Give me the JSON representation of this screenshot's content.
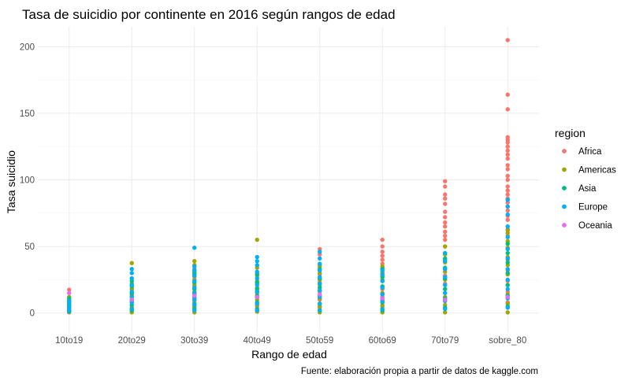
{
  "chart_data": {
    "type": "scatter",
    "title": "Tasa de suicidio por continente en 2016 según rangos de edad",
    "xlabel": "Rango de edad",
    "ylabel": "Tasa suicidio",
    "caption": "Fuente: elaboración propia a partir de datos de kaggle.com",
    "categories": [
      "10to19",
      "20to29",
      "30to39",
      "40to49",
      "50to59",
      "60to69",
      "70to79",
      "sobre_80"
    ],
    "ylim": [
      -15,
      215
    ],
    "yticks": [
      0,
      50,
      100,
      150,
      200
    ],
    "grid": true,
    "legend": {
      "title": "region",
      "placement": "right"
    },
    "series": [
      {
        "name": "Africa",
        "color": "#F8766D",
        "points": [
          [
            "10to19",
            0.5
          ],
          [
            "10to19",
            2
          ],
          [
            "10to19",
            3
          ],
          [
            "10to19",
            17.5
          ],
          [
            "20to29",
            3
          ],
          [
            "20to29",
            8
          ],
          [
            "20to29",
            13
          ],
          [
            "20to29",
            18
          ],
          [
            "30to39",
            4
          ],
          [
            "30to39",
            9
          ],
          [
            "30to39",
            14
          ],
          [
            "30to39",
            20
          ],
          [
            "30to39",
            27
          ],
          [
            "30to39",
            33
          ],
          [
            "40to49",
            5
          ],
          [
            "40to49",
            12
          ],
          [
            "40to49",
            17
          ],
          [
            "40to49",
            22
          ],
          [
            "40to49",
            30
          ],
          [
            "50to59",
            4
          ],
          [
            "50to59",
            10
          ],
          [
            "50to59",
            17
          ],
          [
            "50to59",
            23
          ],
          [
            "50to59",
            29
          ],
          [
            "50to59",
            36
          ],
          [
            "50to59",
            44
          ],
          [
            "50to59",
            48
          ],
          [
            "60to69",
            6
          ],
          [
            "60to69",
            12
          ],
          [
            "60to69",
            18
          ],
          [
            "60to69",
            24
          ],
          [
            "60to69",
            28
          ],
          [
            "60to69",
            31
          ],
          [
            "60to69",
            34
          ],
          [
            "60to69",
            37
          ],
          [
            "60to69",
            40
          ],
          [
            "60to69",
            43
          ],
          [
            "60to69",
            46
          ],
          [
            "60to69",
            50
          ],
          [
            "60to69",
            55
          ],
          [
            "70to79",
            10
          ],
          [
            "70to79",
            15
          ],
          [
            "70to79",
            22
          ],
          [
            "70to79",
            28
          ],
          [
            "70to79",
            33
          ],
          [
            "70to79",
            40
          ],
          [
            "70to79",
            45
          ],
          [
            "70to79",
            50
          ],
          [
            "70to79",
            55
          ],
          [
            "70to79",
            58
          ],
          [
            "70to79",
            61
          ],
          [
            "70to79",
            65
          ],
          [
            "70to79",
            68
          ],
          [
            "70to79",
            72
          ],
          [
            "70to79",
            76
          ],
          [
            "70to79",
            82
          ],
          [
            "70to79",
            86
          ],
          [
            "70to79",
            89
          ],
          [
            "70to79",
            95
          ],
          [
            "70to79",
            99
          ],
          [
            "sobre_80",
            8
          ],
          [
            "sobre_80",
            16
          ],
          [
            "sobre_80",
            24
          ],
          [
            "sobre_80",
            32
          ],
          [
            "sobre_80",
            40
          ],
          [
            "sobre_80",
            52
          ],
          [
            "sobre_80",
            58
          ],
          [
            "sobre_80",
            63
          ],
          [
            "sobre_80",
            70
          ],
          [
            "sobre_80",
            73
          ],
          [
            "sobre_80",
            77
          ],
          [
            "sobre_80",
            80
          ],
          [
            "sobre_80",
            83
          ],
          [
            "sobre_80",
            86
          ],
          [
            "sobre_80",
            89
          ],
          [
            "sobre_80",
            92
          ],
          [
            "sobre_80",
            95
          ],
          [
            "sobre_80",
            100
          ],
          [
            "sobre_80",
            103
          ],
          [
            "sobre_80",
            108
          ],
          [
            "sobre_80",
            111
          ],
          [
            "sobre_80",
            116
          ],
          [
            "sobre_80",
            119
          ],
          [
            "sobre_80",
            122
          ],
          [
            "sobre_80",
            125
          ],
          [
            "sobre_80",
            128
          ],
          [
            "sobre_80",
            130
          ],
          [
            "sobre_80",
            132
          ],
          [
            "sobre_80",
            153
          ],
          [
            "sobre_80",
            164
          ],
          [
            "sobre_80",
            205
          ]
        ]
      },
      {
        "name": "Americas",
        "color": "#A3A500",
        "points": [
          [
            "10to19",
            1
          ],
          [
            "10to19",
            4
          ],
          [
            "10to19",
            6
          ],
          [
            "10to19",
            8
          ],
          [
            "10to19",
            10
          ],
          [
            "10to19",
            12
          ],
          [
            "20to29",
            0.5
          ],
          [
            "20to29",
            4
          ],
          [
            "20to29",
            9
          ],
          [
            "20to29",
            14
          ],
          [
            "20to29",
            18
          ],
          [
            "20to29",
            22
          ],
          [
            "20to29",
            26
          ],
          [
            "20to29",
            37.5
          ],
          [
            "30to39",
            0.5
          ],
          [
            "30to39",
            5
          ],
          [
            "30to39",
            11
          ],
          [
            "30to39",
            16
          ],
          [
            "30to39",
            21
          ],
          [
            "30to39",
            25
          ],
          [
            "30to39",
            29
          ],
          [
            "30to39",
            31
          ],
          [
            "30to39",
            36
          ],
          [
            "30to39",
            39
          ],
          [
            "40to49",
            1
          ],
          [
            "40to49",
            6
          ],
          [
            "40to49",
            10
          ],
          [
            "40to49",
            15
          ],
          [
            "40to49",
            19
          ],
          [
            "40to49",
            24
          ],
          [
            "40to49",
            28
          ],
          [
            "40to49",
            34
          ],
          [
            "40to49",
            55
          ],
          [
            "50to59",
            0.5
          ],
          [
            "50to59",
            5
          ],
          [
            "50to59",
            11
          ],
          [
            "50to59",
            16
          ],
          [
            "50to59",
            21
          ],
          [
            "50to59",
            25
          ],
          [
            "50to59",
            30
          ],
          [
            "50to59",
            35
          ],
          [
            "60to69",
            0.5
          ],
          [
            "60to69",
            5
          ],
          [
            "60to69",
            10
          ],
          [
            "60to69",
            15
          ],
          [
            "60to69",
            20
          ],
          [
            "60to69",
            25
          ],
          [
            "60to69",
            30
          ],
          [
            "60to69",
            35
          ],
          [
            "70to79",
            0.5
          ],
          [
            "70to79",
            6
          ],
          [
            "70to79",
            12
          ],
          [
            "70to79",
            18
          ],
          [
            "70to79",
            25
          ],
          [
            "70to79",
            31
          ],
          [
            "70to79",
            38
          ],
          [
            "70to79",
            44
          ],
          [
            "70to79",
            50
          ],
          [
            "sobre_80",
            0.5
          ],
          [
            "sobre_80",
            7
          ],
          [
            "sobre_80",
            14
          ],
          [
            "sobre_80",
            21
          ],
          [
            "sobre_80",
            29
          ],
          [
            "sobre_80",
            36
          ],
          [
            "sobre_80",
            42
          ],
          [
            "sobre_80",
            49
          ],
          [
            "sobre_80",
            54
          ],
          [
            "sobre_80",
            60
          ],
          [
            "sobre_80",
            62
          ]
        ]
      },
      {
        "name": "Asia",
        "color": "#00BF7D",
        "points": [
          [
            "10to19",
            1
          ],
          [
            "10to19",
            3
          ],
          [
            "10to19",
            5
          ],
          [
            "10to19",
            7
          ],
          [
            "10to19",
            9
          ],
          [
            "10to19",
            11
          ],
          [
            "20to29",
            2
          ],
          [
            "20to29",
            6
          ],
          [
            "20to29",
            10
          ],
          [
            "20to29",
            15
          ],
          [
            "20to29",
            20
          ],
          [
            "20to29",
            24
          ],
          [
            "30to39",
            3
          ],
          [
            "30to39",
            7
          ],
          [
            "30to39",
            12
          ],
          [
            "30to39",
            18
          ],
          [
            "30to39",
            23
          ],
          [
            "30to39",
            30
          ],
          [
            "40to49",
            3
          ],
          [
            "40to49",
            8
          ],
          [
            "40to49",
            13
          ],
          [
            "40to49",
            18
          ],
          [
            "40to49",
            23
          ],
          [
            "40to49",
            29
          ],
          [
            "50to59",
            2
          ],
          [
            "50to59",
            7
          ],
          [
            "50to59",
            13
          ],
          [
            "50to59",
            19
          ],
          [
            "50to59",
            26
          ],
          [
            "50to59",
            33
          ],
          [
            "60to69",
            2
          ],
          [
            "60to69",
            8
          ],
          [
            "60to69",
            14
          ],
          [
            "60to69",
            20
          ],
          [
            "60to69",
            27
          ],
          [
            "60to69",
            33
          ],
          [
            "70to79",
            4
          ],
          [
            "70to79",
            11
          ],
          [
            "70to79",
            18
          ],
          [
            "70to79",
            26
          ],
          [
            "70to79",
            34
          ],
          [
            "70to79",
            41
          ],
          [
            "sobre_80",
            5
          ],
          [
            "sobre_80",
            13
          ],
          [
            "sobre_80",
            21
          ],
          [
            "sobre_80",
            30
          ],
          [
            "sobre_80",
            38
          ],
          [
            "sobre_80",
            45
          ],
          [
            "sobre_80",
            52
          ]
        ]
      },
      {
        "name": "Europe",
        "color": "#00B0F6",
        "points": [
          [
            "10to19",
            2
          ],
          [
            "10to19",
            4
          ],
          [
            "10to19",
            6
          ],
          [
            "10to19",
            9
          ],
          [
            "20to29",
            3
          ],
          [
            "20to29",
            8
          ],
          [
            "20to29",
            12
          ],
          [
            "20to29",
            16
          ],
          [
            "20to29",
            21
          ],
          [
            "20to29",
            26
          ],
          [
            "20to29",
            30
          ],
          [
            "20to29",
            33
          ],
          [
            "30to39",
            2
          ],
          [
            "30to39",
            6
          ],
          [
            "30to39",
            10
          ],
          [
            "30to39",
            15
          ],
          [
            "30to39",
            19
          ],
          [
            "30to39",
            24
          ],
          [
            "30to39",
            28
          ],
          [
            "30to39",
            32
          ],
          [
            "30to39",
            35
          ],
          [
            "30to39",
            49
          ],
          [
            "40to49",
            2
          ],
          [
            "40to49",
            7
          ],
          [
            "40to49",
            12
          ],
          [
            "40to49",
            16
          ],
          [
            "40to49",
            21
          ],
          [
            "40to49",
            26
          ],
          [
            "40to49",
            31
          ],
          [
            "40to49",
            36
          ],
          [
            "40to49",
            39
          ],
          [
            "40to49",
            42
          ],
          [
            "50to59",
            2
          ],
          [
            "50to59",
            7
          ],
          [
            "50to59",
            12
          ],
          [
            "50to59",
            17
          ],
          [
            "50to59",
            22
          ],
          [
            "50to59",
            27
          ],
          [
            "50to59",
            32
          ],
          [
            "50to59",
            37
          ],
          [
            "50to59",
            41
          ],
          [
            "50to59",
            46
          ],
          [
            "60to69",
            3
          ],
          [
            "60to69",
            9
          ],
          [
            "60to69",
            14
          ],
          [
            "60to69",
            19
          ],
          [
            "60to69",
            24
          ],
          [
            "60to69",
            29
          ],
          [
            "60to69",
            32
          ],
          [
            "70to79",
            3
          ],
          [
            "70to79",
            9
          ],
          [
            "70to79",
            15
          ],
          [
            "70to79",
            21
          ],
          [
            "70to79",
            27
          ],
          [
            "70to79",
            33
          ],
          [
            "70to79",
            39
          ],
          [
            "70to79",
            45
          ],
          [
            "sobre_80",
            4
          ],
          [
            "sobre_80",
            11
          ],
          [
            "sobre_80",
            18
          ],
          [
            "sobre_80",
            25
          ],
          [
            "sobre_80",
            33
          ],
          [
            "sobre_80",
            41
          ],
          [
            "sobre_80",
            48
          ],
          [
            "sobre_80",
            57
          ],
          [
            "sobre_80",
            65
          ],
          [
            "sobre_80",
            74
          ],
          [
            "sobre_80",
            80
          ],
          [
            "sobre_80",
            85
          ]
        ]
      },
      {
        "name": "Oceania",
        "color": "#E76BF3",
        "points": [
          [
            "10to19",
            15
          ],
          [
            "20to29",
            10
          ],
          [
            "30to39",
            13
          ],
          [
            "40to49",
            12
          ],
          [
            "50to59",
            14
          ],
          [
            "60to69",
            11
          ],
          [
            "70to79",
            10
          ],
          [
            "sobre_80",
            12
          ]
        ]
      }
    ]
  }
}
